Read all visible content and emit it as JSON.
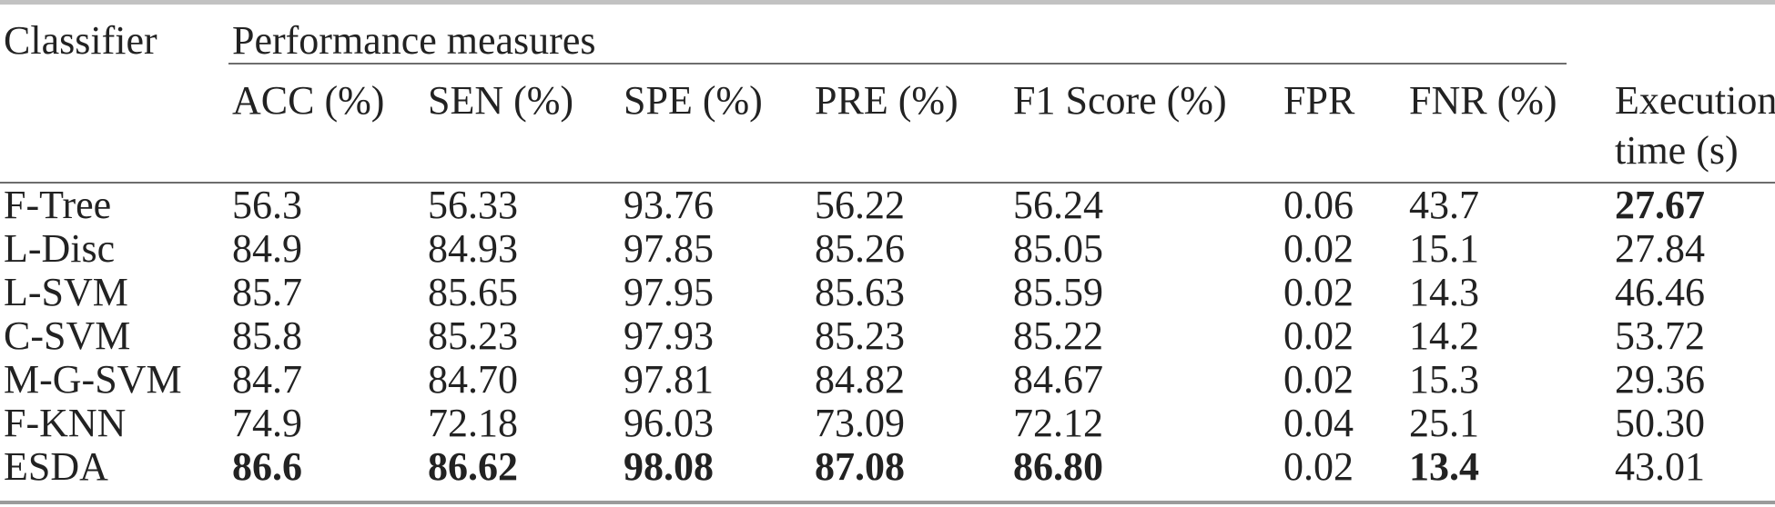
{
  "table": {
    "corner_header": "Classifier",
    "group_header": "Performance measures",
    "columns": [
      "ACC (%)",
      "SEN (%)",
      "SPE (%)",
      "PRE (%)",
      "F1 Score (%)",
      "FPR",
      "FNR (%)",
      "Execution time (s)"
    ],
    "rows": [
      {
        "label": "F-Tree",
        "label_bold": false,
        "values": [
          "56.3",
          "56.33",
          "93.76",
          "56.22",
          "56.24",
          "0.06",
          "43.7",
          "27.67"
        ],
        "bold": [
          false,
          false,
          false,
          false,
          false,
          false,
          false,
          true
        ]
      },
      {
        "label": "L-Disc",
        "label_bold": false,
        "values": [
          "84.9",
          "84.93",
          "97.85",
          "85.26",
          "85.05",
          "0.02",
          "15.1",
          "27.84"
        ],
        "bold": [
          false,
          false,
          false,
          false,
          false,
          false,
          false,
          false
        ]
      },
      {
        "label": "L-SVM",
        "label_bold": false,
        "values": [
          "85.7",
          "85.65",
          "97.95",
          "85.63",
          "85.59",
          "0.02",
          "14.3",
          "46.46"
        ],
        "bold": [
          false,
          false,
          false,
          false,
          false,
          false,
          false,
          false
        ]
      },
      {
        "label": "C-SVM",
        "label_bold": false,
        "values": [
          "85.8",
          "85.23",
          "97.93",
          "85.23",
          "85.22",
          "0.02",
          "14.2",
          "53.72"
        ],
        "bold": [
          false,
          false,
          false,
          false,
          false,
          false,
          false,
          false
        ]
      },
      {
        "label": "M-G-SVM",
        "label_bold": false,
        "values": [
          "84.7",
          "84.70",
          "97.81",
          "84.82",
          "84.67",
          "0.02",
          "15.3",
          "29.36"
        ],
        "bold": [
          false,
          false,
          false,
          false,
          false,
          false,
          false,
          false
        ]
      },
      {
        "label": "F-KNN",
        "label_bold": false,
        "values": [
          "74.9",
          "72.18",
          "96.03",
          "73.09",
          "72.12",
          "0.04",
          "25.1",
          "50.30"
        ],
        "bold": [
          false,
          false,
          false,
          false,
          false,
          false,
          false,
          false
        ]
      },
      {
        "label": "ESDA",
        "label_bold": false,
        "values": [
          "86.6",
          "86.62",
          "98.08",
          "87.08",
          "86.80",
          "0.02",
          "13.4",
          "43.01"
        ],
        "bold": [
          true,
          true,
          true,
          true,
          true,
          false,
          true,
          false
        ]
      }
    ]
  },
  "colors": {
    "text": "#222222",
    "rule_top": "#c2c2c2",
    "rule_mid": "#6d6d6d",
    "rule_bottom": "#9b9b9b",
    "background": "#ffffff"
  }
}
